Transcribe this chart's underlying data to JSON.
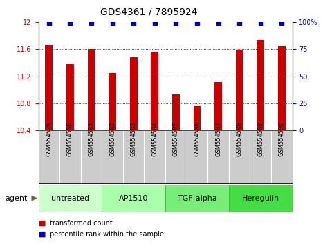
{
  "title": "GDS4361 / 7895924",
  "samples": [
    "GSM554579",
    "GSM554580",
    "GSM554581",
    "GSM554582",
    "GSM554583",
    "GSM554584",
    "GSM554585",
    "GSM554586",
    "GSM554587",
    "GSM554588",
    "GSM554589",
    "GSM554590"
  ],
  "bar_values": [
    11.66,
    11.38,
    11.6,
    11.25,
    11.48,
    11.56,
    10.93,
    10.76,
    11.12,
    11.59,
    11.73,
    11.64
  ],
  "percentile_values": [
    100,
    100,
    100,
    100,
    100,
    100,
    100,
    100,
    100,
    100,
    100,
    100
  ],
  "bar_color": "#cc0000",
  "percentile_color": "#0000cc",
  "ylim_left": [
    10.4,
    12.0
  ],
  "ylim_right": [
    0,
    100
  ],
  "yticks_left": [
    10.4,
    10.8,
    11.2,
    11.6,
    12.0
  ],
  "ytick_labels_left": [
    "10.4",
    "10.8",
    "11.2",
    "11.6",
    "12"
  ],
  "yticks_right": [
    0,
    25,
    50,
    75,
    100
  ],
  "ytick_labels_right": [
    "0",
    "25",
    "50",
    "75",
    "100%"
  ],
  "groups": [
    {
      "label": "untreated",
      "start": 0,
      "end": 3,
      "color": "#ccffcc"
    },
    {
      "label": "AP1510",
      "start": 3,
      "end": 6,
      "color": "#aaffaa"
    },
    {
      "label": "TGF-alpha",
      "start": 6,
      "end": 9,
      "color": "#77ee77"
    },
    {
      "label": "Heregulin",
      "start": 9,
      "end": 12,
      "color": "#44dd44"
    }
  ],
  "legend_items": [
    {
      "label": "transformed count",
      "color": "#cc0000"
    },
    {
      "label": "percentile rank within the sample",
      "color": "#0000cc"
    }
  ],
  "bar_width": 0.35,
  "sample_bg": "#cccccc",
  "title_fontsize": 10,
  "tick_fontsize": 7,
  "sample_fontsize": 6,
  "group_fontsize": 8,
  "legend_fontsize": 7,
  "agent_fontsize": 8,
  "grid_lines": [
    10.8,
    11.2,
    11.6
  ]
}
